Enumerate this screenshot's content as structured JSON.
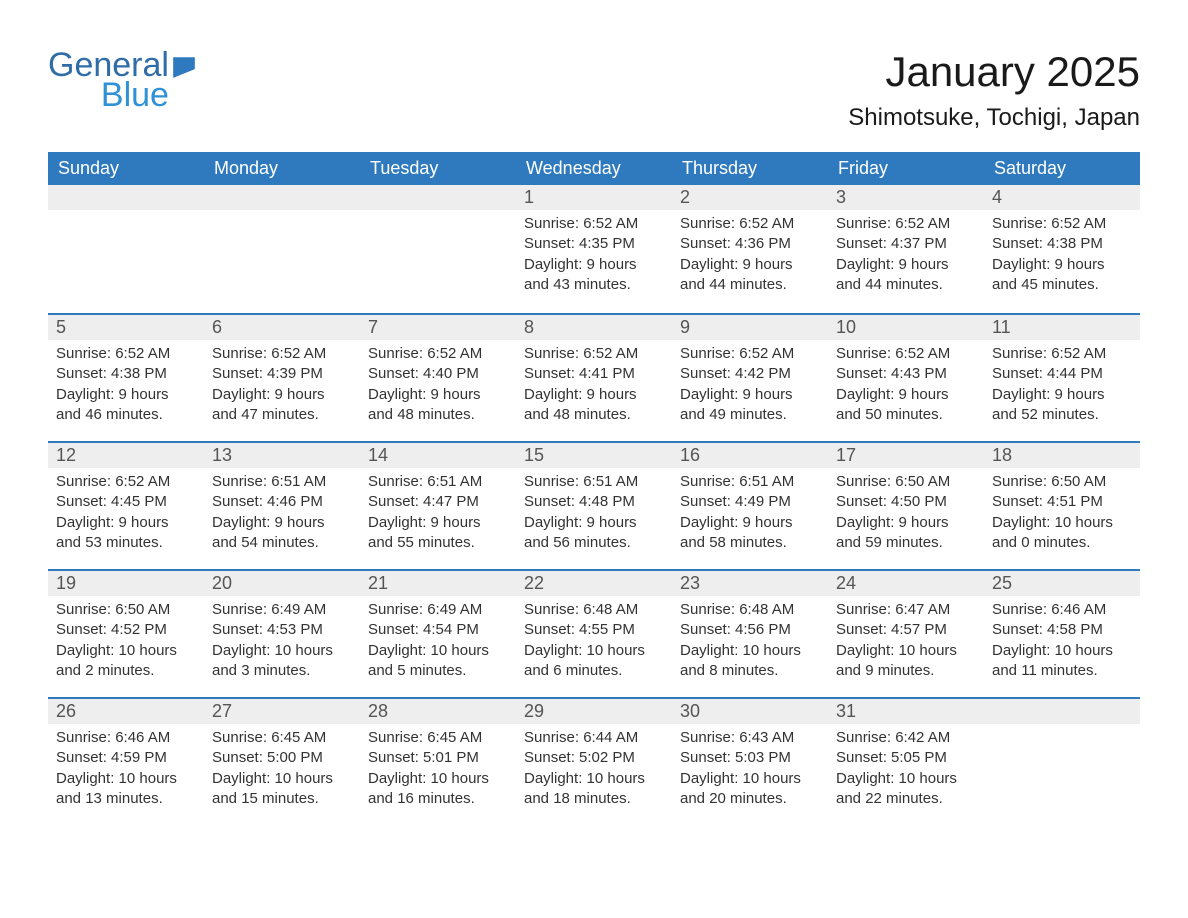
{
  "logo": {
    "word1": "General",
    "word2": "Blue",
    "flag_color": "#2f7abf"
  },
  "title": "January 2025",
  "location": "Shimotsuke, Tochigi, Japan",
  "colors": {
    "header_bg": "#2f7abf",
    "header_text": "#ffffff",
    "daynum_bg": "#eeeeee",
    "cell_rule": "#2f7abf",
    "body_text": "#333333",
    "logo_primary": "#2f6da8",
    "logo_secondary": "#2f92d6"
  },
  "day_headers": [
    "Sunday",
    "Monday",
    "Tuesday",
    "Wednesday",
    "Thursday",
    "Friday",
    "Saturday"
  ],
  "weeks": [
    [
      null,
      null,
      null,
      {
        "n": "1",
        "sunrise": "6:52 AM",
        "sunset": "4:35 PM",
        "dl_h": "9",
        "dl_m": "43"
      },
      {
        "n": "2",
        "sunrise": "6:52 AM",
        "sunset": "4:36 PM",
        "dl_h": "9",
        "dl_m": "44"
      },
      {
        "n": "3",
        "sunrise": "6:52 AM",
        "sunset": "4:37 PM",
        "dl_h": "9",
        "dl_m": "44"
      },
      {
        "n": "4",
        "sunrise": "6:52 AM",
        "sunset": "4:38 PM",
        "dl_h": "9",
        "dl_m": "45"
      }
    ],
    [
      {
        "n": "5",
        "sunrise": "6:52 AM",
        "sunset": "4:38 PM",
        "dl_h": "9",
        "dl_m": "46"
      },
      {
        "n": "6",
        "sunrise": "6:52 AM",
        "sunset": "4:39 PM",
        "dl_h": "9",
        "dl_m": "47"
      },
      {
        "n": "7",
        "sunrise": "6:52 AM",
        "sunset": "4:40 PM",
        "dl_h": "9",
        "dl_m": "48"
      },
      {
        "n": "8",
        "sunrise": "6:52 AM",
        "sunset": "4:41 PM",
        "dl_h": "9",
        "dl_m": "48"
      },
      {
        "n": "9",
        "sunrise": "6:52 AM",
        "sunset": "4:42 PM",
        "dl_h": "9",
        "dl_m": "49"
      },
      {
        "n": "10",
        "sunrise": "6:52 AM",
        "sunset": "4:43 PM",
        "dl_h": "9",
        "dl_m": "50"
      },
      {
        "n": "11",
        "sunrise": "6:52 AM",
        "sunset": "4:44 PM",
        "dl_h": "9",
        "dl_m": "52"
      }
    ],
    [
      {
        "n": "12",
        "sunrise": "6:52 AM",
        "sunset": "4:45 PM",
        "dl_h": "9",
        "dl_m": "53"
      },
      {
        "n": "13",
        "sunrise": "6:51 AM",
        "sunset": "4:46 PM",
        "dl_h": "9",
        "dl_m": "54"
      },
      {
        "n": "14",
        "sunrise": "6:51 AM",
        "sunset": "4:47 PM",
        "dl_h": "9",
        "dl_m": "55"
      },
      {
        "n": "15",
        "sunrise": "6:51 AM",
        "sunset": "4:48 PM",
        "dl_h": "9",
        "dl_m": "56"
      },
      {
        "n": "16",
        "sunrise": "6:51 AM",
        "sunset": "4:49 PM",
        "dl_h": "9",
        "dl_m": "58"
      },
      {
        "n": "17",
        "sunrise": "6:50 AM",
        "sunset": "4:50 PM",
        "dl_h": "9",
        "dl_m": "59"
      },
      {
        "n": "18",
        "sunrise": "6:50 AM",
        "sunset": "4:51 PM",
        "dl_h": "10",
        "dl_m": "0"
      }
    ],
    [
      {
        "n": "19",
        "sunrise": "6:50 AM",
        "sunset": "4:52 PM",
        "dl_h": "10",
        "dl_m": "2"
      },
      {
        "n": "20",
        "sunrise": "6:49 AM",
        "sunset": "4:53 PM",
        "dl_h": "10",
        "dl_m": "3"
      },
      {
        "n": "21",
        "sunrise": "6:49 AM",
        "sunset": "4:54 PM",
        "dl_h": "10",
        "dl_m": "5"
      },
      {
        "n": "22",
        "sunrise": "6:48 AM",
        "sunset": "4:55 PM",
        "dl_h": "10",
        "dl_m": "6"
      },
      {
        "n": "23",
        "sunrise": "6:48 AM",
        "sunset": "4:56 PM",
        "dl_h": "10",
        "dl_m": "8"
      },
      {
        "n": "24",
        "sunrise": "6:47 AM",
        "sunset": "4:57 PM",
        "dl_h": "10",
        "dl_m": "9"
      },
      {
        "n": "25",
        "sunrise": "6:46 AM",
        "sunset": "4:58 PM",
        "dl_h": "10",
        "dl_m": "11"
      }
    ],
    [
      {
        "n": "26",
        "sunrise": "6:46 AM",
        "sunset": "4:59 PM",
        "dl_h": "10",
        "dl_m": "13"
      },
      {
        "n": "27",
        "sunrise": "6:45 AM",
        "sunset": "5:00 PM",
        "dl_h": "10",
        "dl_m": "15"
      },
      {
        "n": "28",
        "sunrise": "6:45 AM",
        "sunset": "5:01 PM",
        "dl_h": "10",
        "dl_m": "16"
      },
      {
        "n": "29",
        "sunrise": "6:44 AM",
        "sunset": "5:02 PM",
        "dl_h": "10",
        "dl_m": "18"
      },
      {
        "n": "30",
        "sunrise": "6:43 AM",
        "sunset": "5:03 PM",
        "dl_h": "10",
        "dl_m": "20"
      },
      {
        "n": "31",
        "sunrise": "6:42 AM",
        "sunset": "5:05 PM",
        "dl_h": "10",
        "dl_m": "22"
      },
      null
    ]
  ],
  "labels": {
    "sunrise": "Sunrise:",
    "sunset": "Sunset:",
    "daylight": "Daylight:",
    "hours": "hours",
    "and": "and",
    "minutes": "minutes."
  }
}
